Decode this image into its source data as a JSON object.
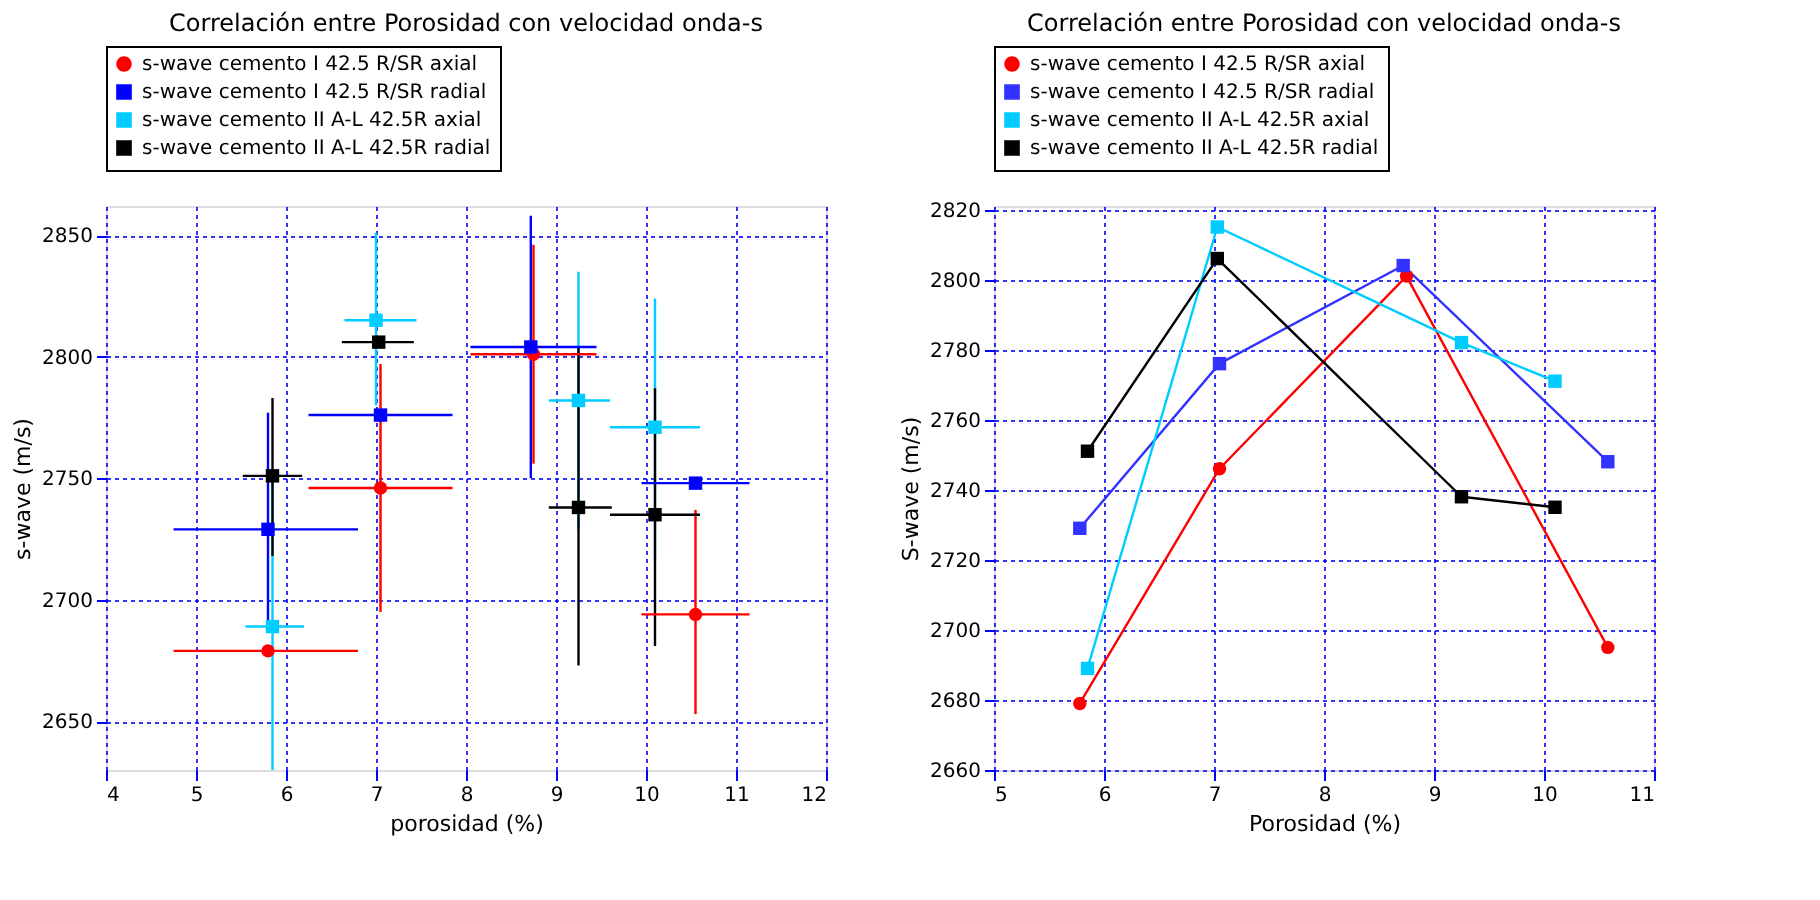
{
  "chart_data": [
    {
      "type": "scatter",
      "title": "Correlación entre Porosidad con velocidad onda-s",
      "xlabel": "porosidad (%)",
      "ylabel": "s-wave (m/s)",
      "xlim": [
        4,
        12
      ],
      "xticks": [
        4,
        5,
        6,
        7,
        8,
        9,
        10,
        11,
        12
      ],
      "ylim": [
        2630,
        2862
      ],
      "yticks": [
        2650,
        2700,
        2750,
        2800,
        2850
      ],
      "grid": true,
      "legend": "top",
      "series": [
        {
          "name": "s-wave cemento I 42.5 R/SR axial",
          "color": "#ff0000",
          "marker": "circle",
          "x": [
            5.8,
            7.05,
            8.75,
            10.55
          ],
          "values": [
            2679,
            2746,
            2801,
            2694
          ],
          "errors": [
            null,
            [
              2695,
              2797
            ],
            [
              2756,
              2846
            ],
            [
              2653,
              2737
            ]
          ],
          "xerrors": [
            [
              4.75,
              6.8
            ],
            [
              6.25,
              7.85
            ],
            [
              8.05,
              9.45
            ],
            [
              9.95,
              11.15
            ]
          ]
        },
        {
          "name": "s-wave cemento I 42.5 R/SR radial",
          "color": "#0000ff",
          "marker": "square",
          "x": [
            5.8,
            7.05,
            8.72,
            10.55
          ],
          "values": [
            2729,
            2776,
            2804,
            2748
          ],
          "errors": [
            [
              2690,
              2777
            ],
            null,
            [
              2750,
              2858
            ],
            null
          ],
          "xerrors": [
            [
              4.75,
              6.8
            ],
            [
              6.25,
              7.85
            ],
            [
              8.05,
              9.45
            ],
            [
              9.95,
              11.15
            ]
          ]
        },
        {
          "name": "s-wave cemento II A-L 42.5R axial",
          "color": "#00ccff",
          "marker": "square",
          "x": [
            5.85,
            7.0,
            9.25,
            10.1
          ],
          "values": [
            2689,
            2815,
            2782,
            2771
          ],
          "errors": [
            [
              2630,
              2750
            ],
            [
              2780,
              2851
            ],
            [
              2729,
              2835
            ],
            [
              2717,
              2824
            ]
          ],
          "xerrors": [
            [
              5.55,
              6.2
            ],
            [
              6.65,
              7.45
            ],
            [
              8.92,
              9.6
            ],
            [
              9.6,
              10.6
            ]
          ]
        },
        {
          "name": "s-wave cemento II A-L 42.5R radial",
          "color": "#000000",
          "marker": "square",
          "x": [
            5.85,
            7.03,
            9.25,
            10.1
          ],
          "values": [
            2751,
            2806,
            2738,
            2735
          ],
          "errors": [
            [
              2718,
              2783
            ],
            null,
            [
              2673,
              2804
            ],
            [
              2681,
              2787
            ]
          ],
          "xerrors": [
            [
              5.52,
              6.18
            ],
            [
              6.62,
              7.42
            ],
            [
              8.92,
              9.62
            ],
            [
              9.6,
              10.6
            ]
          ]
        }
      ]
    },
    {
      "type": "line",
      "title": "Correlación entre Porosidad con velocidad onda-s",
      "xlabel": "Porosidad (%)",
      "ylabel": "S-wave (m/s)",
      "xlim": [
        5,
        11
      ],
      "xticks": [
        5,
        6,
        7,
        8,
        9,
        10,
        11
      ],
      "ylim": [
        2660,
        2821
      ],
      "yticks": [
        2660,
        2680,
        2700,
        2720,
        2740,
        2760,
        2780,
        2800,
        2820
      ],
      "grid": true,
      "legend": "top",
      "series": [
        {
          "name": "s-wave cemento I 42.5 R/SR axial",
          "color": "#ff0000",
          "marker": "circle",
          "x": [
            5.78,
            7.05,
            8.75,
            10.58
          ],
          "values": [
            2679,
            2746,
            2801,
            2695
          ]
        },
        {
          "name": "s-wave cemento I 42.5 R/SR radial",
          "color": "#3333ff",
          "marker": "square",
          "x": [
            5.78,
            7.05,
            8.72,
            10.58
          ],
          "values": [
            2729,
            2776,
            2804,
            2748
          ]
        },
        {
          "name": "s-wave cemento II A-L 42.5R axial",
          "color": "#00ccff",
          "marker": "square",
          "x": [
            5.85,
            7.03,
            9.25,
            10.1
          ],
          "values": [
            2689,
            2815,
            2782,
            2771
          ]
        },
        {
          "name": "s-wave cemento II A-L 42.5R radial",
          "color": "#000000",
          "marker": "square",
          "x": [
            5.85,
            7.03,
            9.25,
            10.1
          ],
          "values": [
            2751,
            2806,
            2738,
            2735
          ]
        }
      ]
    }
  ]
}
